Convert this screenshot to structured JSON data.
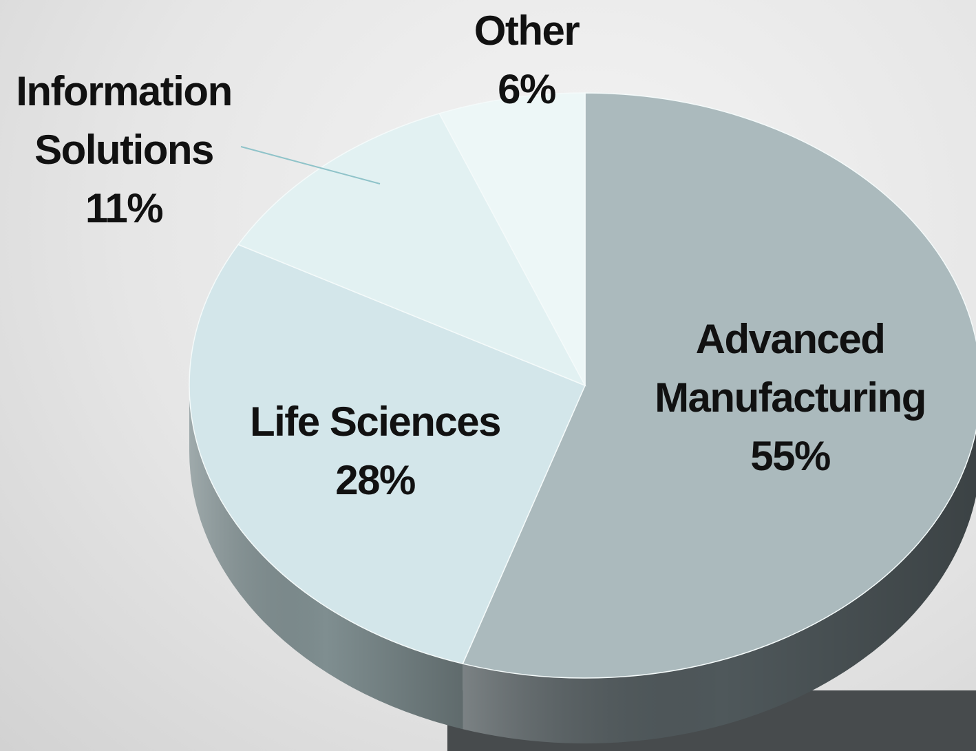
{
  "chart_data": {
    "type": "pie",
    "categories": [
      "Advanced Manufacturing",
      "Life Sciences",
      "Information Solutions",
      "Other"
    ],
    "values": [
      55,
      28,
      11,
      6
    ],
    "value_labels": [
      "55%",
      "28%",
      "11%",
      "6%"
    ],
    "colors": [
      "#abbabd",
      "#d3e6ea",
      "#e2f1f2",
      "#edf7f7"
    ],
    "side_colors": [
      "#4f585b",
      "#7f8e90",
      "#8d9c9e",
      "#98a6a8"
    ]
  }
}
